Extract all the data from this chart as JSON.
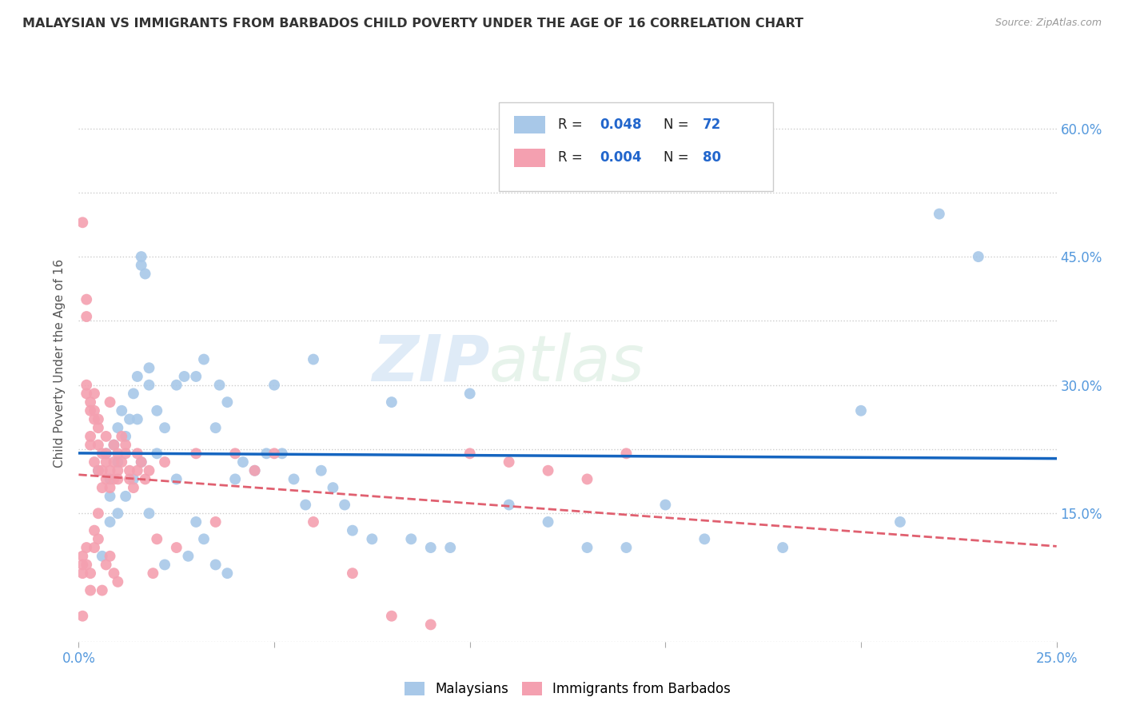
{
  "title": "MALAYSIAN VS IMMIGRANTS FROM BARBADOS CHILD POVERTY UNDER THE AGE OF 16 CORRELATION CHART",
  "source": "Source: ZipAtlas.com",
  "ylabel": "Child Poverty Under the Age of 16",
  "xlim": [
    0.0,
    0.25
  ],
  "ylim": [
    0.0,
    0.65
  ],
  "xtick_positions": [
    0.0,
    0.05,
    0.1,
    0.15,
    0.2,
    0.25
  ],
  "xtick_labels": [
    "0.0%",
    "",
    "",
    "",
    "",
    "25.0%"
  ],
  "ytick_positions": [
    0.0,
    0.15,
    0.225,
    0.3,
    0.375,
    0.45,
    0.525,
    0.6
  ],
  "ytick_labels_right": [
    "",
    "15.0%",
    "",
    "30.0%",
    "",
    "45.0%",
    "",
    "60.0%"
  ],
  "color_malaysian": "#a8c8e8",
  "color_barbados": "#f4a0b0",
  "color_line_malaysian": "#1565c0",
  "color_line_barbados": "#e06070",
  "background_color": "#ffffff",
  "tick_color": "#5599dd",
  "watermark_zip": "ZIP",
  "watermark_atlas": "atlas",
  "malaysian_x": [
    0.005,
    0.007,
    0.008,
    0.008,
    0.009,
    0.01,
    0.01,
    0.011,
    0.012,
    0.013,
    0.014,
    0.015,
    0.015,
    0.016,
    0.016,
    0.017,
    0.018,
    0.018,
    0.02,
    0.022,
    0.025,
    0.027,
    0.03,
    0.032,
    0.035,
    0.036,
    0.038,
    0.04,
    0.042,
    0.045,
    0.048,
    0.05,
    0.052,
    0.055,
    0.058,
    0.06,
    0.062,
    0.065,
    0.068,
    0.07,
    0.075,
    0.08,
    0.085,
    0.09,
    0.095,
    0.1,
    0.11,
    0.12,
    0.13,
    0.14,
    0.15,
    0.16,
    0.18,
    0.2,
    0.21,
    0.22,
    0.23,
    0.006,
    0.008,
    0.01,
    0.012,
    0.014,
    0.016,
    0.018,
    0.02,
    0.022,
    0.025,
    0.028,
    0.03,
    0.032,
    0.035,
    0.038
  ],
  "malaysian_y": [
    0.2,
    0.22,
    0.17,
    0.19,
    0.23,
    0.21,
    0.25,
    0.27,
    0.24,
    0.26,
    0.29,
    0.26,
    0.31,
    0.44,
    0.45,
    0.43,
    0.3,
    0.32,
    0.27,
    0.25,
    0.3,
    0.31,
    0.31,
    0.33,
    0.25,
    0.3,
    0.28,
    0.19,
    0.21,
    0.2,
    0.22,
    0.3,
    0.22,
    0.19,
    0.16,
    0.33,
    0.2,
    0.18,
    0.16,
    0.13,
    0.12,
    0.28,
    0.12,
    0.11,
    0.11,
    0.29,
    0.16,
    0.14,
    0.11,
    0.11,
    0.16,
    0.12,
    0.11,
    0.27,
    0.14,
    0.5,
    0.45,
    0.1,
    0.14,
    0.15,
    0.17,
    0.19,
    0.21,
    0.15,
    0.22,
    0.09,
    0.19,
    0.1,
    0.14,
    0.12,
    0.09,
    0.08
  ],
  "barbados_x": [
    0.001,
    0.001,
    0.001,
    0.002,
    0.002,
    0.002,
    0.002,
    0.003,
    0.003,
    0.003,
    0.003,
    0.004,
    0.004,
    0.004,
    0.004,
    0.005,
    0.005,
    0.005,
    0.005,
    0.006,
    0.006,
    0.006,
    0.007,
    0.007,
    0.007,
    0.007,
    0.008,
    0.008,
    0.008,
    0.009,
    0.009,
    0.009,
    0.01,
    0.01,
    0.01,
    0.011,
    0.011,
    0.012,
    0.012,
    0.013,
    0.013,
    0.014,
    0.015,
    0.015,
    0.016,
    0.017,
    0.018,
    0.019,
    0.02,
    0.022,
    0.025,
    0.03,
    0.035,
    0.04,
    0.045,
    0.05,
    0.06,
    0.07,
    0.08,
    0.09,
    0.1,
    0.11,
    0.12,
    0.13,
    0.14,
    0.001,
    0.001,
    0.002,
    0.002,
    0.003,
    0.003,
    0.004,
    0.004,
    0.005,
    0.005,
    0.006,
    0.007,
    0.008,
    0.009,
    0.01
  ],
  "barbados_y": [
    0.49,
    0.03,
    0.09,
    0.4,
    0.38,
    0.3,
    0.29,
    0.28,
    0.27,
    0.23,
    0.24,
    0.27,
    0.26,
    0.29,
    0.21,
    0.25,
    0.23,
    0.2,
    0.26,
    0.18,
    0.22,
    0.2,
    0.24,
    0.21,
    0.19,
    0.22,
    0.18,
    0.2,
    0.28,
    0.19,
    0.21,
    0.23,
    0.22,
    0.2,
    0.19,
    0.24,
    0.21,
    0.22,
    0.23,
    0.19,
    0.2,
    0.18,
    0.2,
    0.22,
    0.21,
    0.19,
    0.2,
    0.08,
    0.12,
    0.21,
    0.11,
    0.22,
    0.14,
    0.22,
    0.2,
    0.22,
    0.14,
    0.08,
    0.03,
    0.02,
    0.22,
    0.21,
    0.2,
    0.19,
    0.22,
    0.1,
    0.08,
    0.09,
    0.11,
    0.06,
    0.08,
    0.11,
    0.13,
    0.15,
    0.12,
    0.06,
    0.09,
    0.1,
    0.08,
    0.07
  ]
}
